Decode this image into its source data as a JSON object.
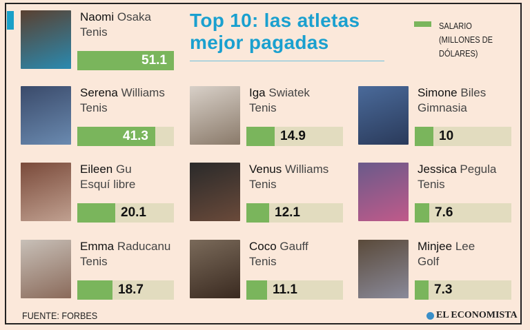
{
  "title_line1": "Top 10: las atletas",
  "title_line2": "mejor pagadas",
  "legend": {
    "label": "SALARIO (MILLONES DE DÓLARES)",
    "color": "#7ab55c"
  },
  "source": "FUENTE: FORBES",
  "brand": "EL ECONOMISTA",
  "colors": {
    "accent": "#1aa0cf",
    "bar": "#7ab55c",
    "track": "#e2dcbf",
    "background": "#fbe8da"
  },
  "chart_data": {
    "type": "bar",
    "title": "Top 10: las atletas mejor pagadas",
    "ylabel": "SALARIO (MILLONES DE DÓLARES)",
    "xlim": [
      0,
      51.1
    ],
    "categories": [
      "Naomi Osaka",
      "Serena Williams",
      "Iga Swiatek",
      "Simone Biles",
      "Eileen Gu",
      "Venus Williams",
      "Jessica Pegula",
      "Emma Raducanu",
      "Coco Gauff",
      "Minjee Lee"
    ],
    "values": [
      51.1,
      41.3,
      14.9,
      10,
      20.1,
      12.1,
      7.6,
      18.7,
      11.1,
      7.3
    ],
    "athletes": [
      {
        "first": "Naomi",
        "last": "Osaka",
        "sport": "Tenis",
        "value": "51.1"
      },
      {
        "first": "Serena",
        "last": "Williams",
        "sport": "Tenis",
        "value": "41.3"
      },
      {
        "first": "Iga",
        "last": "Swiatek",
        "sport": "Tenis",
        "value": "14.9"
      },
      {
        "first": "Simone",
        "last": "Biles",
        "sport": "Gimnasia",
        "value": "10"
      },
      {
        "first": "Eileen",
        "last": "Gu",
        "sport": "Esquí libre",
        "value": "20.1"
      },
      {
        "first": "Venus",
        "last": "Williams",
        "sport": "Tenis",
        "value": "12.1"
      },
      {
        "first": "Jessica",
        "last": "Pegula",
        "sport": "Tenis",
        "value": "7.6"
      },
      {
        "first": "Emma",
        "last": "Raducanu",
        "sport": "Tenis",
        "value": "18.7"
      },
      {
        "first": "Coco",
        "last": "Gauff",
        "sport": "Tenis",
        "value": "11.1"
      },
      {
        "first": "Minjee",
        "last": "Lee",
        "sport": "Golf",
        "value": "7.3"
      }
    ]
  }
}
